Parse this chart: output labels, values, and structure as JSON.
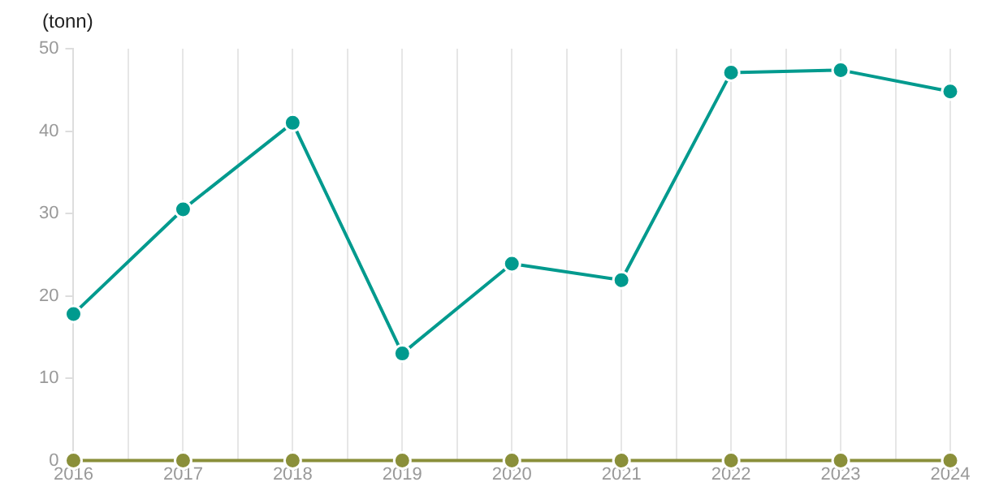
{
  "chart_data": {
    "type": "line",
    "ylabel": "(tonn)",
    "x": [
      2016,
      2017,
      2018,
      2019,
      2020,
      2021,
      2022,
      2023,
      2024
    ],
    "series": [
      {
        "color": "#009a8e",
        "values": [
          17.8,
          30.5,
          41.0,
          13.0,
          23.9,
          21.9,
          47.1,
          47.4,
          44.8
        ]
      },
      {
        "color": "#8a8f3a",
        "values": [
          0,
          0,
          0,
          0,
          0,
          0,
          0,
          0,
          0
        ]
      }
    ],
    "xlim": [
      2016,
      2024
    ],
    "xticks": [
      2016,
      {
        "value": 2016.5,
        "label": null
      },
      2017,
      {
        "value": 2017.5,
        "label": null
      },
      2018,
      {
        "value": 2018.5,
        "label": null
      },
      2019,
      {
        "value": 2019.5,
        "label": null
      },
      2020,
      {
        "value": 2020.5,
        "label": null
      },
      2021,
      {
        "value": 2021.5,
        "label": null
      },
      2022,
      {
        "value": 2022.5,
        "label": null
      },
      2023,
      {
        "value": 2023.5,
        "label": null
      },
      2024
    ],
    "ylim": [
      0,
      50
    ],
    "yticks": [
      0,
      10,
      20,
      30,
      40,
      50
    ],
    "grid": "x",
    "legend": false,
    "marker": "circle",
    "line_style": "solid"
  }
}
